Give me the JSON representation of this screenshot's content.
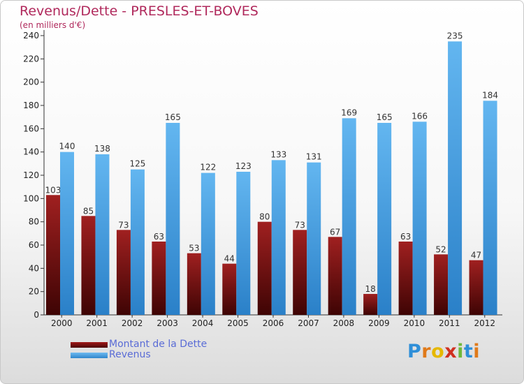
{
  "header": {
    "title": "Revenus/Dette - PRESLES-ET-BOVES",
    "subtitle": "(en milliers d'€)"
  },
  "chart_data": {
    "type": "bar",
    "title": "Revenus/Dette - PRESLES-ET-BOVES",
    "ylabel": "(en milliers d'€)",
    "xlabel": "",
    "ylim": [
      0,
      240
    ],
    "ytick_step": 20,
    "grid": false,
    "categories": [
      "2000",
      "2001",
      "2002",
      "2003",
      "2004",
      "2005",
      "2006",
      "2007",
      "2008",
      "2009",
      "2010",
      "2011",
      "2012"
    ],
    "series": [
      {
        "name": "Montant de la Dette",
        "color": "#6e0a0a",
        "values": [
          103,
          85,
          73,
          63,
          53,
          44,
          80,
          73,
          67,
          18,
          63,
          52,
          47
        ]
      },
      {
        "name": "Revenus",
        "color": "#4ea6e6",
        "values": [
          140,
          138,
          125,
          165,
          122,
          123,
          133,
          131,
          169,
          165,
          166,
          235,
          184
        ]
      }
    ]
  },
  "legend": {
    "items": [
      {
        "label": "Montant de la Dette",
        "color": "#6e0a0a"
      },
      {
        "label": "Revenus",
        "color": "#4ea6e6"
      }
    ]
  },
  "brand": {
    "letters": [
      "P",
      "r",
      "o",
      "x",
      "i",
      "t",
      "i"
    ],
    "colors": [
      "#2f8fd8",
      "#e07a1a",
      "#e6b800",
      "#d03020",
      "#6fb83a",
      "#2f8fd8",
      "#e07a1a"
    ]
  }
}
